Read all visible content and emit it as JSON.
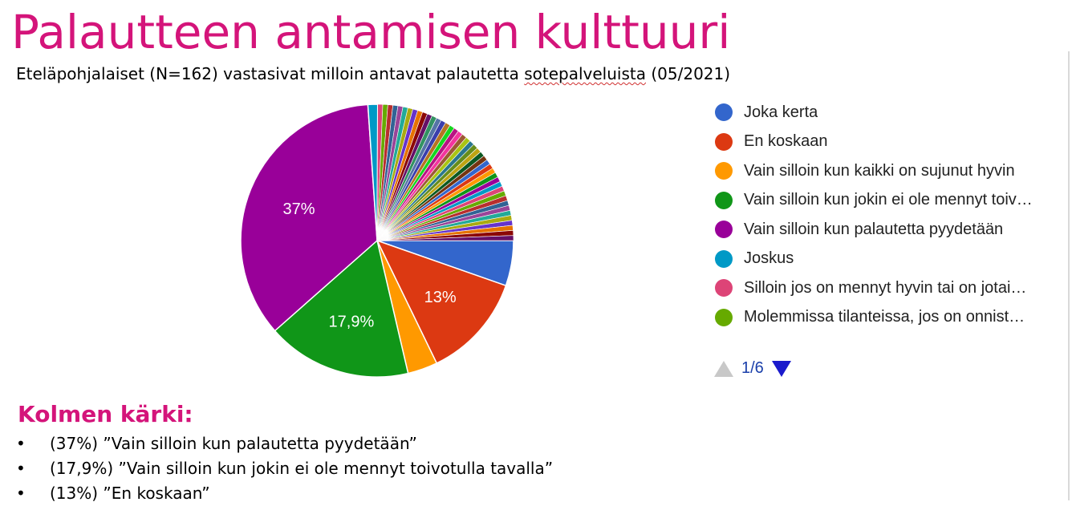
{
  "title": "Palautteen antamisen kulttuuri",
  "subtitle": {
    "before": "Eteläpohjalaiset (N=162) vastasivat milloin antavat palautetta ",
    "underlined": "sotepalveluista",
    "after": " (05/2021)"
  },
  "chart_data": {
    "type": "pie",
    "title": "",
    "slices": [
      {
        "label": "Joka kerta",
        "value": 5.6,
        "color": "#3366cc"
      },
      {
        "label": "En koskaan",
        "value": 13,
        "color": "#dc3912",
        "data_label": "13%"
      },
      {
        "label": "Vain silloin kun kaikki on sujunut hyvin",
        "value": 3.7,
        "color": "#ff9900"
      },
      {
        "label": "Vain silloin kun jokin ei ole mennyt toiv…",
        "value": 17.9,
        "color": "#109618",
        "data_label": "17,9%"
      },
      {
        "label": "Vain silloin kun palautetta pyydetään",
        "value": 37,
        "color": "#990099",
        "data_label": "37%"
      },
      {
        "label": "Joskus",
        "value": 1.2,
        "color": "#0099c6"
      },
      {
        "label": "Silloin jos on mennyt hyvin tai on jotai…",
        "value": 0.62,
        "color": "#dd4477"
      },
      {
        "label": "Molemmissa tilanteissa, jos on onnist…",
        "value": 0.62,
        "color": "#66aa00"
      },
      {
        "label": "",
        "value": 0.62,
        "color": "#b82e2e"
      },
      {
        "label": "",
        "value": 0.62,
        "color": "#316395"
      },
      {
        "label": "",
        "value": 0.62,
        "color": "#994499"
      },
      {
        "label": "",
        "value": 0.62,
        "color": "#22aa99"
      },
      {
        "label": "",
        "value": 0.62,
        "color": "#aaaa11"
      },
      {
        "label": "",
        "value": 0.62,
        "color": "#6633cc"
      },
      {
        "label": "",
        "value": 0.62,
        "color": "#e67300"
      },
      {
        "label": "",
        "value": 0.62,
        "color": "#8b0707"
      },
      {
        "label": "",
        "value": 0.62,
        "color": "#651067"
      },
      {
        "label": "",
        "value": 0.62,
        "color": "#329262"
      },
      {
        "label": "",
        "value": 0.62,
        "color": "#5574a6"
      },
      {
        "label": "",
        "value": 0.62,
        "color": "#3b3eac"
      },
      {
        "label": "",
        "value": 0.62,
        "color": "#b77322"
      },
      {
        "label": "",
        "value": 0.62,
        "color": "#16d620"
      },
      {
        "label": "",
        "value": 0.62,
        "color": "#b91383"
      },
      {
        "label": "",
        "value": 0.62,
        "color": "#f4359e"
      },
      {
        "label": "",
        "value": 0.62,
        "color": "#9c5935"
      },
      {
        "label": "",
        "value": 0.62,
        "color": "#a9c413"
      },
      {
        "label": "",
        "value": 0.62,
        "color": "#2a778d"
      },
      {
        "label": "",
        "value": 0.62,
        "color": "#668d1c"
      },
      {
        "label": "",
        "value": 0.62,
        "color": "#bea413"
      },
      {
        "label": "",
        "value": 0.62,
        "color": "#0c5922"
      },
      {
        "label": "",
        "value": 0.62,
        "color": "#743411"
      },
      {
        "label": "",
        "value": 0.62,
        "color": "#3366cc"
      },
      {
        "label": "",
        "value": 0.62,
        "color": "#dc3912"
      },
      {
        "label": "",
        "value": 0.62,
        "color": "#ff9900"
      },
      {
        "label": "",
        "value": 0.62,
        "color": "#109618"
      },
      {
        "label": "",
        "value": 0.62,
        "color": "#990099"
      },
      {
        "label": "",
        "value": 0.62,
        "color": "#0099c6"
      },
      {
        "label": "",
        "value": 0.62,
        "color": "#dd4477"
      },
      {
        "label": "",
        "value": 0.62,
        "color": "#66aa00"
      },
      {
        "label": "",
        "value": 0.62,
        "color": "#b82e2e"
      },
      {
        "label": "",
        "value": 0.62,
        "color": "#316395"
      },
      {
        "label": "",
        "value": 0.62,
        "color": "#994499"
      },
      {
        "label": "",
        "value": 0.62,
        "color": "#22aa99"
      },
      {
        "label": "",
        "value": 0.62,
        "color": "#aaaa11"
      },
      {
        "label": "",
        "value": 0.62,
        "color": "#6633cc"
      },
      {
        "label": "",
        "value": 0.62,
        "color": "#e67300"
      },
      {
        "label": "",
        "value": 0.62,
        "color": "#8b0707"
      },
      {
        "label": "",
        "value": 0.62,
        "color": "#651067"
      }
    ],
    "legend_placement": "right",
    "legend_page": "1/6"
  },
  "legend_visible_count": 8,
  "top3": {
    "heading": "Kolmen kärki:",
    "items": [
      "(37%) ”Vain silloin kun palautetta pyydetään”",
      "(17,9%) ”Vain silloin kun jokin ei ole mennyt toivotulla tavalla”",
      "(13%)  ”En koskaan”"
    ],
    "bullet": "•"
  },
  "colors": {
    "accent": "#d4147a",
    "pager_active": "#1a1acc",
    "pager_disabled": "#c8c8c8"
  }
}
